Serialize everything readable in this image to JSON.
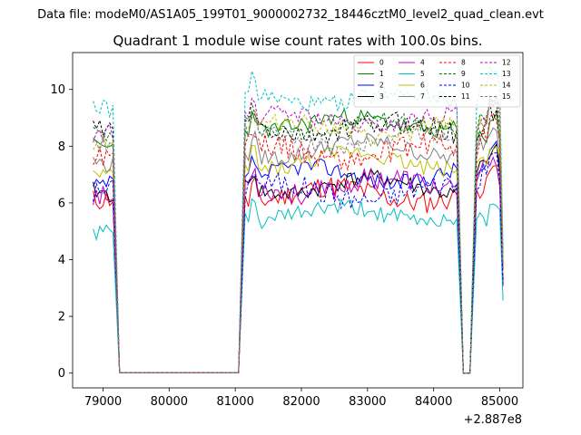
{
  "chart_data": {
    "type": "line",
    "suptitle": "Data file: modeM0/AS1A05_199T01_9000002732_18446cztM0_level2_quad_clean.evt",
    "title": "Quadrant 1 module wise count rates with 100.0s bins.",
    "xlabel": "",
    "ylabel": "",
    "x_offset_label": "+2.887e8",
    "xlim": [
      78540,
      85350
    ],
    "ylim": [
      -0.52,
      11.3
    ],
    "x_ticks": [
      79000,
      80000,
      81000,
      82000,
      83000,
      84000,
      85000
    ],
    "x_tick_labels": [
      "79000",
      "80000",
      "81000",
      "82000",
      "83000",
      "84000",
      "85000"
    ],
    "y_ticks": [
      0,
      2,
      4,
      6,
      8,
      10
    ],
    "y_tick_labels": [
      "0",
      "2",
      "4",
      "6",
      "8",
      "10"
    ],
    "legend_position": "top-right",
    "colors": {
      "background": "#ffffff",
      "axes": "#000000"
    },
    "segments": [
      {
        "x_start": 78850,
        "x_end": 79150,
        "step": 50
      },
      {
        "x_start": 79250,
        "x_end": 81050,
        "step": 100
      },
      {
        "x_start": 81150,
        "x_end": 84350,
        "step": 50
      },
      {
        "x_start": 84450,
        "x_end": 84550,
        "step": 100
      },
      {
        "x_start": 84650,
        "x_end": 85050,
        "step": 50
      }
    ],
    "series": [
      {
        "name": "0",
        "color": "#ff0000",
        "style": "solid",
        "seed": 11,
        "levels": [
          6.4,
          0.02,
          6.3,
          0,
          6.8
        ],
        "amp": 0.5,
        "noise": 0.4
      },
      {
        "name": "1",
        "color": "#008000",
        "style": "solid",
        "seed": 23,
        "levels": [
          8.2,
          0.02,
          8.8,
          0,
          8.6
        ],
        "amp": 0.4,
        "noise": 0.3
      },
      {
        "name": "2",
        "color": "#0000ff",
        "style": "solid",
        "seed": 37,
        "levels": [
          6.7,
          0.02,
          7.0,
          0,
          7.3
        ],
        "amp": 0.5,
        "noise": 0.3
      },
      {
        "name": "3",
        "color": "#000000",
        "style": "solid",
        "seed": 41,
        "levels": [
          6.5,
          0.02,
          6.6,
          0,
          7.4
        ],
        "amp": 0.5,
        "noise": 0.3
      },
      {
        "name": "4",
        "color": "#bf00bf",
        "style": "solid",
        "seed": 53,
        "levels": [
          6.2,
          0.02,
          6.6,
          0,
          7.1
        ],
        "amp": 0.5,
        "noise": 0.4
      },
      {
        "name": "5",
        "color": "#00bfbf",
        "style": "solid",
        "seed": 61,
        "levels": [
          5.2,
          0.02,
          5.6,
          0,
          5.7
        ],
        "amp": 0.4,
        "noise": 0.3
      },
      {
        "name": "6",
        "color": "#bfbf00",
        "style": "solid",
        "seed": 73,
        "levels": [
          7.2,
          0.02,
          7.5,
          0,
          7.8
        ],
        "amp": 0.5,
        "noise": 0.3
      },
      {
        "name": "7",
        "color": "#808080",
        "style": "solid",
        "seed": 79,
        "levels": [
          7.6,
          0.02,
          7.9,
          0,
          8.3
        ],
        "amp": 0.5,
        "noise": 0.3
      },
      {
        "name": "8",
        "color": "#ff0000",
        "style": "dashed",
        "seed": 89,
        "levels": [
          7.4,
          0.02,
          7.8,
          0,
          8.0
        ],
        "amp": 0.5,
        "noise": 0.4
      },
      {
        "name": "9",
        "color": "#008000",
        "style": "dashed",
        "seed": 97,
        "levels": [
          8.4,
          0.02,
          8.7,
          0,
          8.9
        ],
        "amp": 0.4,
        "noise": 0.3
      },
      {
        "name": "10",
        "color": "#0000ff",
        "style": "dashed",
        "seed": 101,
        "levels": [
          6.2,
          0.02,
          6.4,
          0,
          6.8
        ],
        "amp": 0.5,
        "noise": 0.4
      },
      {
        "name": "11",
        "color": "#000000",
        "style": "dashed",
        "seed": 103,
        "levels": [
          8.5,
          0.02,
          8.6,
          0,
          8.6
        ],
        "amp": 0.4,
        "noise": 0.4
      },
      {
        "name": "12",
        "color": "#bf00bf",
        "style": "dashed",
        "seed": 107,
        "levels": [
          8.3,
          0.02,
          8.9,
          0,
          8.9
        ],
        "amp": 0.4,
        "noise": 0.3
      },
      {
        "name": "13",
        "color": "#00bfbf",
        "style": "dashed",
        "seed": 109,
        "levels": [
          9.2,
          0.02,
          9.7,
          0,
          9.9
        ],
        "amp": 0.4,
        "noise": 0.3
      },
      {
        "name": "14",
        "color": "#bfbf00",
        "style": "dashed",
        "seed": 113,
        "levels": [
          8.1,
          0.02,
          8.6,
          0,
          8.9
        ],
        "amp": 0.5,
        "noise": 0.3
      },
      {
        "name": "15",
        "color": "#808080",
        "style": "dashed",
        "seed": 127,
        "levels": [
          7.8,
          0.02,
          8.2,
          0,
          8.6
        ],
        "amp": 0.5,
        "noise": 0.3
      }
    ]
  }
}
